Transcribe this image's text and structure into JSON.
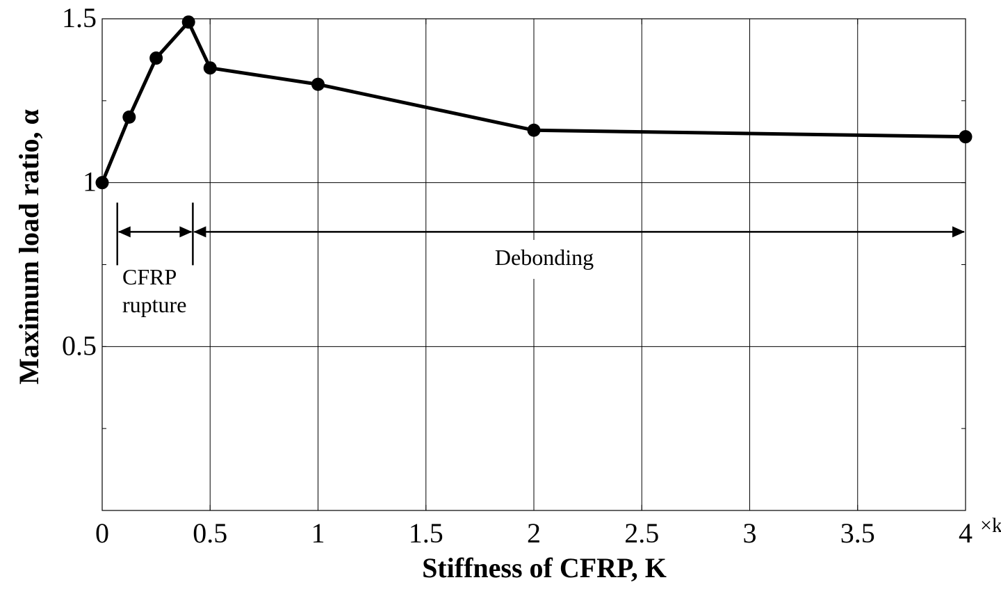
{
  "chart_data": {
    "type": "line",
    "title": "",
    "xlabel": "Stiffness of CFRP, K",
    "ylabel": "Maximum load ratio, α",
    "x_unit_suffix": "×k",
    "xlim": [
      0,
      4
    ],
    "ylim": [
      0,
      1.5
    ],
    "x_ticks": [
      "0",
      "0.5",
      "1",
      "1.5",
      "2",
      "2.5",
      "3",
      "3.5",
      "4"
    ],
    "y_ticks": [
      "0.5",
      "1",
      "1.5"
    ],
    "grid": true,
    "series": [
      {
        "color": "#000000",
        "marker": "circle",
        "x": [
          0,
          0.125,
          0.25,
          0.4,
          0.5,
          1,
          2,
          4
        ],
        "y": [
          1.0,
          1.2,
          1.38,
          1.49,
          1.35,
          1.3,
          1.16,
          1.14
        ]
      }
    ],
    "annotations": {
      "rupture_label_line1": "CFRP",
      "rupture_label_line2": "rupture",
      "debonding_label": "Debonding",
      "rupture_range": [
        0.07,
        0.42
      ],
      "debonding_range": [
        0.42,
        4
      ],
      "arrow_level": 0.85
    }
  }
}
